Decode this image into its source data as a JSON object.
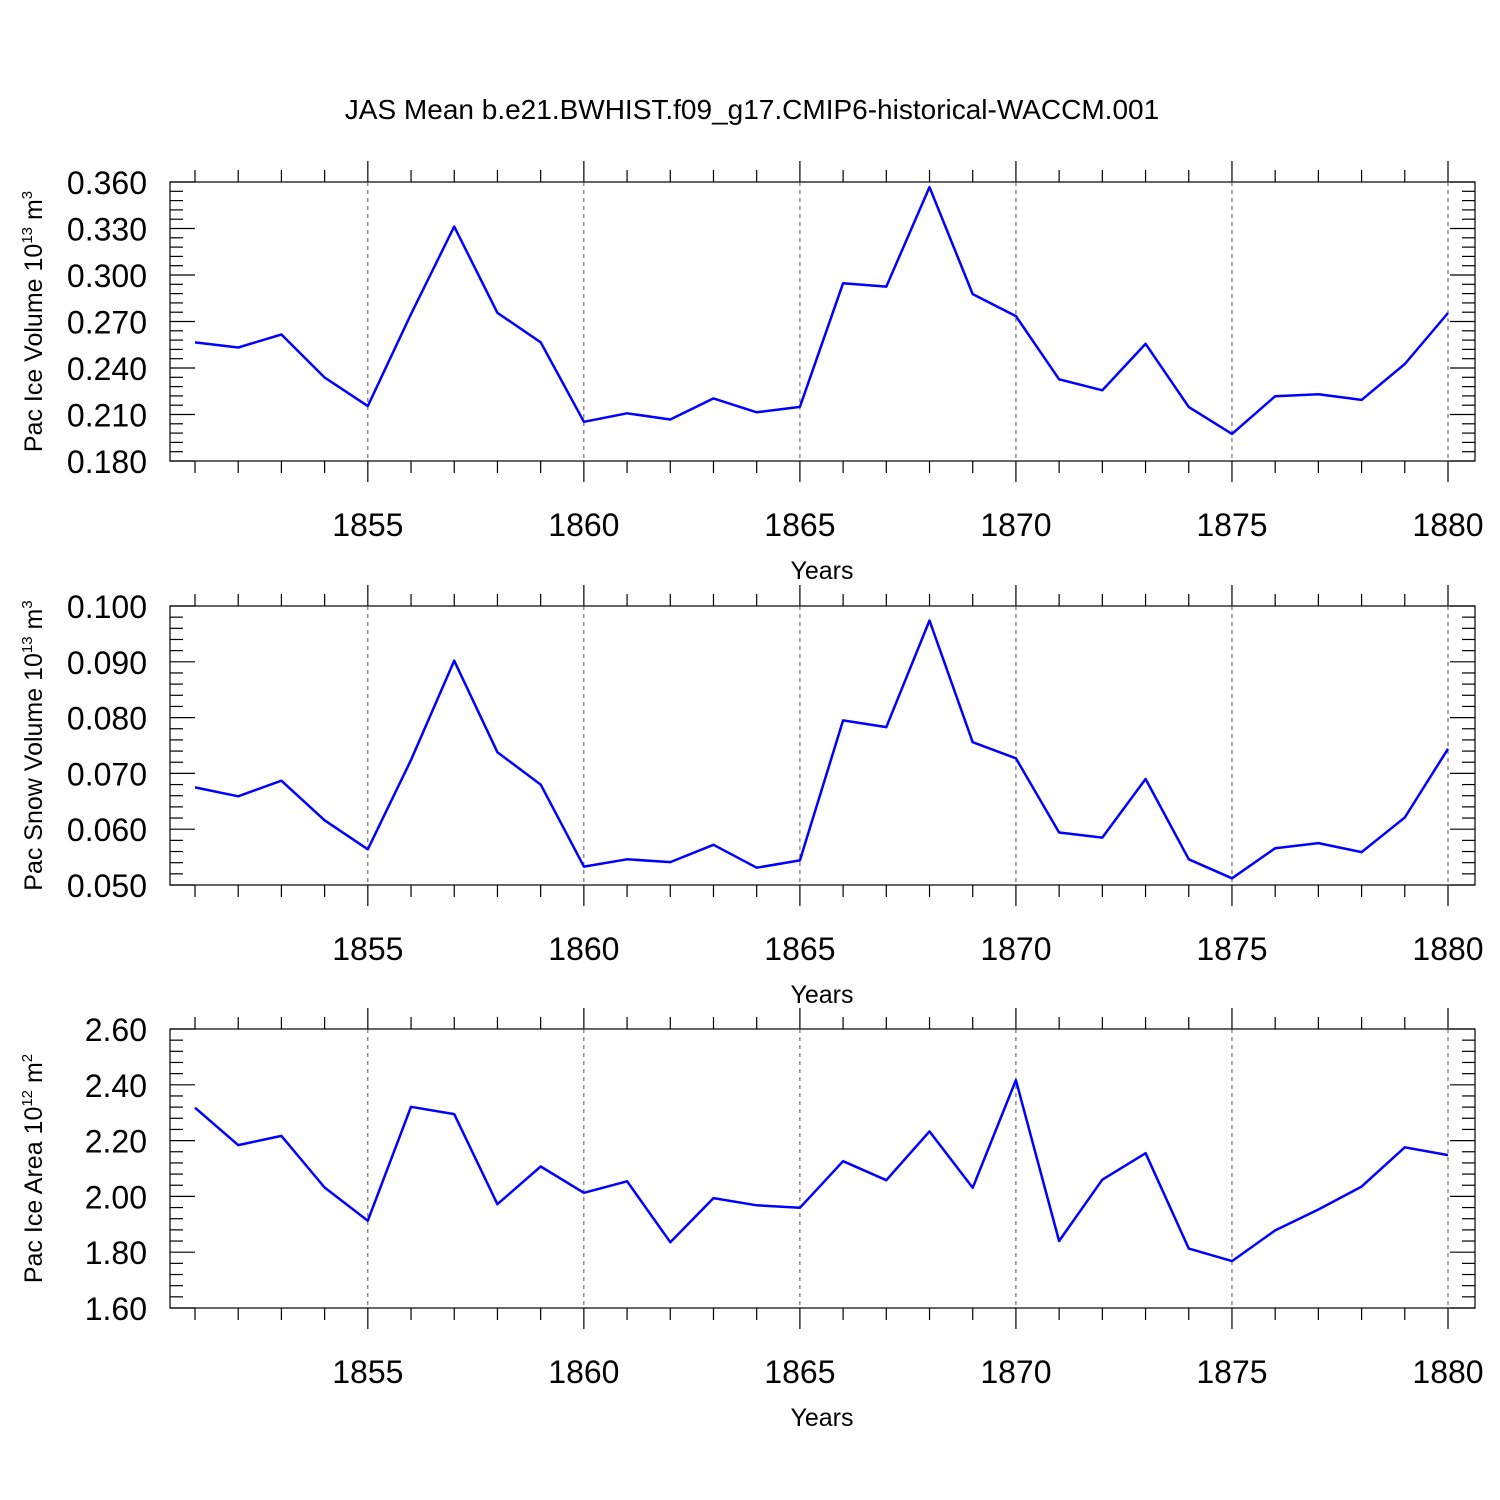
{
  "title": "JAS Mean b.e21.BWHIST.f09_g17.CMIP6-historical-WACCM.001",
  "colors": {
    "line": "#0000ff",
    "grid": "#555555"
  },
  "chart_data": [
    {
      "type": "line",
      "xlabel": "Years",
      "ylabel": {
        "text": "Pac Ice Volume 10",
        "sup": "13",
        "unit": " m",
        "unit_sup": "3"
      },
      "xlim": [
        1851,
        1880
      ],
      "ylim": [
        0.18,
        0.36
      ],
      "xticks": [
        "1855",
        "1860",
        "1865",
        "1870",
        "1875",
        "1880"
      ],
      "yticks": [
        "0.180",
        "0.210",
        "0.240",
        "0.270",
        "0.300",
        "0.330",
        "0.360"
      ],
      "grid": "x-major dashed",
      "x": [
        1851,
        1852,
        1853,
        1854,
        1855,
        1856,
        1857,
        1858,
        1859,
        1860,
        1861,
        1862,
        1863,
        1864,
        1865,
        1866,
        1867,
        1868,
        1869,
        1870,
        1871,
        1872,
        1873,
        1874,
        1875,
        1876,
        1877,
        1878,
        1879,
        1880
      ],
      "values": [
        0.2565,
        0.2532,
        0.2616,
        0.2339,
        0.2154,
        0.2748,
        0.3313,
        0.2756,
        0.2566,
        0.2053,
        0.2108,
        0.2068,
        0.2204,
        0.2114,
        0.2149,
        0.2947,
        0.2925,
        0.3567,
        0.2877,
        0.2735,
        0.2327,
        0.2256,
        0.2556,
        0.2148,
        0.1975,
        0.2218,
        0.223,
        0.2194,
        0.2426,
        0.2755
      ]
    },
    {
      "type": "line",
      "xlabel": "Years",
      "ylabel": {
        "text": "Pac Snow Volume 10",
        "sup": "13",
        "unit": " m",
        "unit_sup": "3"
      },
      "xlim": [
        1851,
        1880
      ],
      "ylim": [
        0.05,
        0.1
      ],
      "xticks": [
        "1855",
        "1860",
        "1865",
        "1870",
        "1875",
        "1880"
      ],
      "yticks": [
        "0.050",
        "0.060",
        "0.070",
        "0.080",
        "0.090",
        "0.100"
      ],
      "grid": "x-major dashed",
      "x": [
        1851,
        1852,
        1853,
        1854,
        1855,
        1856,
        1857,
        1858,
        1859,
        1860,
        1861,
        1862,
        1863,
        1864,
        1865,
        1866,
        1867,
        1868,
        1869,
        1870,
        1871,
        1872,
        1873,
        1874,
        1875,
        1876,
        1877,
        1878,
        1879,
        1880
      ],
      "values": [
        0.0675,
        0.0659,
        0.0687,
        0.0616,
        0.0564,
        0.0724,
        0.0902,
        0.0738,
        0.068,
        0.0533,
        0.0546,
        0.0541,
        0.0572,
        0.0531,
        0.0544,
        0.0795,
        0.0783,
        0.0974,
        0.0756,
        0.0727,
        0.0594,
        0.0585,
        0.069,
        0.0546,
        0.0512,
        0.0566,
        0.0575,
        0.0559,
        0.0621,
        0.0744
      ]
    },
    {
      "type": "line",
      "xlabel": "Years",
      "ylabel": {
        "text": "Pac Ice Area 10",
        "sup": "12",
        "unit": " m",
        "unit_sup": "2"
      },
      "xlim": [
        1851,
        1880
      ],
      "ylim": [
        1.6,
        2.6
      ],
      "xticks": [
        "1855",
        "1860",
        "1865",
        "1870",
        "1875",
        "1880"
      ],
      "yticks": [
        "1.60",
        "1.80",
        "2.00",
        "2.20",
        "2.40",
        "2.60"
      ],
      "grid": "x-major dashed",
      "x": [
        1851,
        1852,
        1853,
        1854,
        1855,
        1856,
        1857,
        1858,
        1859,
        1860,
        1861,
        1862,
        1863,
        1864,
        1865,
        1866,
        1867,
        1868,
        1869,
        1870,
        1871,
        1872,
        1873,
        1874,
        1875,
        1876,
        1877,
        1878,
        1879,
        1880
      ],
      "values": [
        2.318,
        2.184,
        2.217,
        2.032,
        1.913,
        2.321,
        2.295,
        1.972,
        2.107,
        2.013,
        2.054,
        1.836,
        1.994,
        1.968,
        1.959,
        2.126,
        2.058,
        2.233,
        2.031,
        2.417,
        1.84,
        2.06,
        2.155,
        1.813,
        1.768,
        1.878,
        1.953,
        2.035,
        2.176,
        2.148
      ]
    }
  ]
}
